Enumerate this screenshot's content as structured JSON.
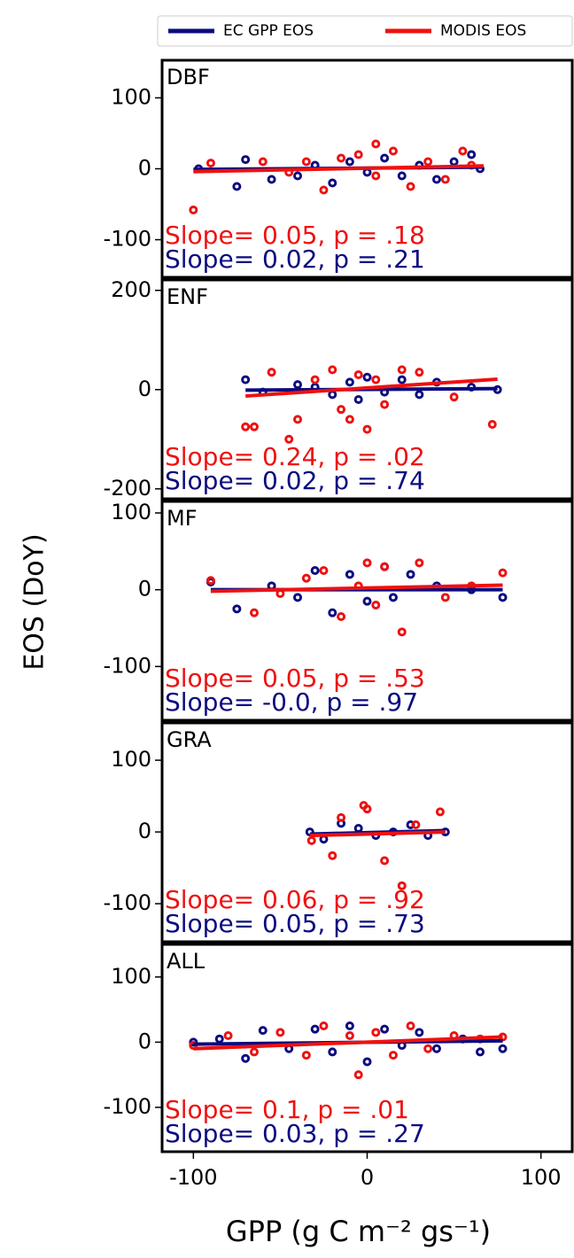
{
  "chart_data": [
    {
      "type": "scatter",
      "title": "DBF",
      "xlim": [
        -118,
        118
      ],
      "ylim": [
        -153,
        153
      ],
      "yticks": [
        -100,
        0,
        100
      ],
      "series": [
        {
          "name": "EC GPP EOS",
          "color": "#0b0b80",
          "x": [
            -97,
            -75,
            -70,
            -55,
            -40,
            -30,
            -20,
            -10,
            0,
            10,
            20,
            30,
            40,
            50,
            60,
            65
          ],
          "values": [
            0,
            -25,
            13,
            -15,
            -10,
            5,
            -20,
            10,
            -5,
            15,
            -10,
            5,
            -15,
            10,
            20,
            0
          ],
          "fit": {
            "x": [
              -100,
              67
            ],
            "values": [
              -1,
              2.3
            ]
          }
        },
        {
          "name": "MODIS EOS",
          "color": "#ee1111",
          "x": [
            -90,
            -100,
            -60,
            -45,
            -35,
            -25,
            -15,
            -5,
            5,
            5,
            15,
            25,
            35,
            45,
            55,
            60
          ],
          "values": [
            8,
            -58,
            10,
            -5,
            10,
            -30,
            15,
            20,
            35,
            -10,
            25,
            -25,
            10,
            -15,
            25,
            5
          ],
          "fit": {
            "x": [
              -100,
              67
            ],
            "values": [
              -4,
              4
            ]
          }
        }
      ],
      "annotations": [
        {
          "text": "Slope= 0.05, p = .18",
          "color": "#ee1111"
        },
        {
          "text": "Slope= 0.02, p = .21",
          "color": "#0b0b80"
        }
      ]
    },
    {
      "type": "scatter",
      "title": "ENF",
      "xlim": [
        -118,
        118
      ],
      "ylim": [
        -220,
        221
      ],
      "yticks": [
        -200,
        0,
        200
      ],
      "series": [
        {
          "color": "#0b0b80",
          "x": [
            -70,
            -60,
            -40,
            -30,
            -20,
            -10,
            -5,
            0,
            10,
            20,
            30,
            40,
            60,
            75
          ],
          "values": [
            20,
            -5,
            10,
            5,
            -10,
            15,
            -20,
            25,
            -5,
            20,
            -10,
            15,
            5,
            0
          ],
          "fit": {
            "x": [
              -70,
              75
            ],
            "values": [
              -1,
              2
            ]
          }
        },
        {
          "color": "#ee1111",
          "x": [
            -70,
            -65,
            -55,
            -45,
            -40,
            -30,
            -20,
            -15,
            -10,
            -5,
            0,
            5,
            10,
            20,
            30,
            50,
            72
          ],
          "values": [
            -75,
            -75,
            35,
            -100,
            -60,
            20,
            40,
            -40,
            -60,
            30,
            -80,
            20,
            -30,
            40,
            35,
            -15,
            -70
          ],
          "fit": {
            "x": [
              -70,
              75
            ],
            "values": [
              -13,
              21
            ]
          }
        }
      ],
      "annotations": [
        {
          "text": "Slope= 0.24, p = .02",
          "color": "#ee1111"
        },
        {
          "text": "Slope= 0.02, p = .74",
          "color": "#0b0b80"
        }
      ]
    },
    {
      "type": "scatter",
      "title": "MF",
      "ylabel": "EOS (DoY)",
      "xlim": [
        -118,
        118
      ],
      "ylim": [
        -170,
        115
      ],
      "yticks": [
        -100,
        0,
        100
      ],
      "series": [
        {
          "color": "#0b0b80",
          "x": [
            -90,
            -75,
            -55,
            -40,
            -30,
            -20,
            -10,
            0,
            10,
            15,
            25,
            40,
            60,
            78
          ],
          "values": [
            10,
            -25,
            5,
            -10,
            25,
            -30,
            20,
            -15,
            30,
            -10,
            20,
            5,
            0,
            -10
          ],
          "fit": {
            "x": [
              -90,
              78
            ],
            "values": [
              0,
              0
            ]
          }
        },
        {
          "color": "#ee1111",
          "x": [
            -90,
            -65,
            -50,
            -35,
            -25,
            -15,
            -5,
            0,
            5,
            10,
            20,
            30,
            45,
            60,
            78
          ],
          "values": [
            12,
            -30,
            -5,
            15,
            25,
            -35,
            5,
            35,
            -20,
            30,
            -55,
            35,
            -10,
            5,
            22
          ],
          "fit": {
            "x": [
              -90,
              78
            ],
            "values": [
              -2,
              6
            ]
          }
        }
      ],
      "annotations": [
        {
          "text": "Slope= 0.05, p = .53",
          "color": "#ee1111"
        },
        {
          "text": "Slope= -0.0, p = .97",
          "color": "#0b0b80"
        }
      ]
    },
    {
      "type": "scatter",
      "title": "GRA",
      "xlim": [
        -118,
        118
      ],
      "ylim": [
        -153,
        152
      ],
      "yticks": [
        -100,
        0,
        100
      ],
      "series": [
        {
          "color": "#0b0b80",
          "x": [
            -33,
            -25,
            -15,
            -5,
            5,
            15,
            25,
            35,
            45
          ],
          "values": [
            0,
            -10,
            12,
            5,
            -5,
            0,
            10,
            -5,
            0
          ],
          "fit": {
            "x": [
              -33,
              45
            ],
            "values": [
              -3,
              2
            ]
          }
        },
        {
          "color": "#ee1111",
          "x": [
            -32,
            -20,
            -15,
            -2,
            0,
            10,
            20,
            28,
            42
          ],
          "values": [
            -12,
            -33,
            20,
            37,
            32,
            -40,
            -75,
            10,
            28
          ],
          "fit": {
            "x": [
              -33,
              45
            ],
            "values": [
              -5,
              0
            ]
          }
        }
      ],
      "annotations": [
        {
          "text": "Slope= 0.06, p = .92",
          "color": "#ee1111"
        },
        {
          "text": "Slope= 0.05, p = .73",
          "color": "#0b0b80"
        }
      ]
    },
    {
      "type": "scatter",
      "title": "ALL",
      "xlabel": "GPP (g C m⁻² gs⁻¹)",
      "xlim": [
        -118,
        118
      ],
      "xticks": [
        -100,
        0,
        100
      ],
      "ylim": [
        -168,
        150
      ],
      "yticks": [
        -100,
        0,
        100
      ],
      "series": [
        {
          "color": "#0b0b80",
          "x": [
            -100,
            -85,
            -70,
            -60,
            -45,
            -30,
            -20,
            -10,
            0,
            10,
            20,
            30,
            40,
            55,
            65,
            78
          ],
          "values": [
            0,
            5,
            -25,
            18,
            -10,
            20,
            -15,
            25,
            -30,
            20,
            -5,
            15,
            -10,
            5,
            -15,
            -10
          ],
          "fit": {
            "x": [
              -100,
              78
            ],
            "values": [
              -3,
              2
            ]
          }
        },
        {
          "color": "#ee1111",
          "x": [
            -100,
            -80,
            -65,
            -50,
            -35,
            -25,
            -10,
            -5,
            5,
            15,
            25,
            35,
            50,
            65,
            78
          ],
          "values": [
            -5,
            10,
            -15,
            15,
            -20,
            25,
            10,
            -50,
            15,
            -20,
            25,
            -10,
            10,
            5,
            8
          ],
          "fit": {
            "x": [
              -100,
              78
            ],
            "values": [
              -10,
              8
            ]
          }
        }
      ],
      "annotations": [
        {
          "text": "Slope= 0.1, p = .01",
          "color": "#ee1111"
        },
        {
          "text": "Slope= 0.03, p = .27",
          "color": "#0b0b80"
        }
      ]
    }
  ]
}
